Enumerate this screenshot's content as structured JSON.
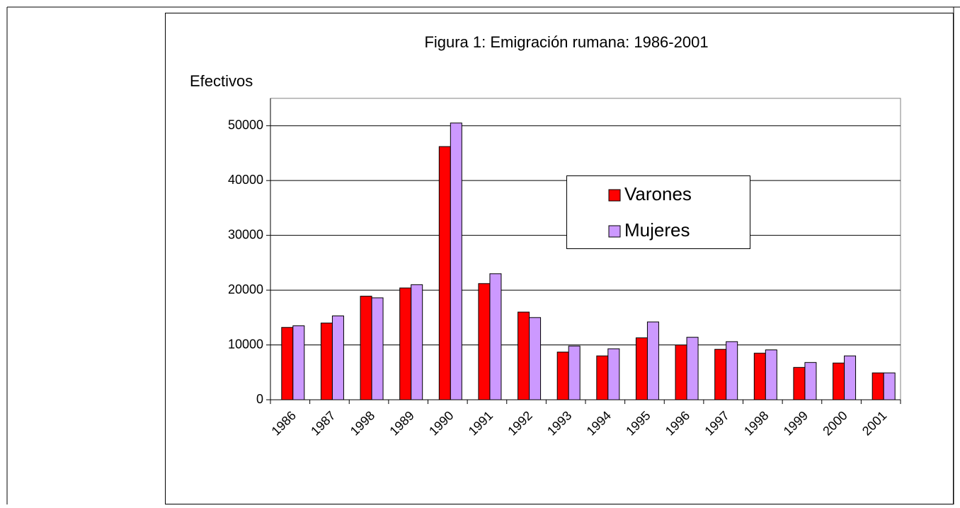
{
  "chart_data": {
    "type": "bar",
    "title": "Figura 1: Emigración rumana: 1986-2001",
    "y_label": "Efectivos",
    "categories": [
      "1986",
      "1987",
      "1998",
      "1989",
      "1990",
      "1991",
      "1992",
      "1993",
      "1994",
      "1995",
      "1996",
      "1997",
      "1998",
      "1999",
      "2000",
      "2001"
    ],
    "series": [
      {
        "name": "Varones",
        "color": "#ff0000",
        "values": [
          13200,
          14000,
          18900,
          20400,
          46200,
          21200,
          16000,
          8700,
          8000,
          11300,
          10000,
          9200,
          8500,
          5900,
          6700,
          4900
        ]
      },
      {
        "name": "Mujeres",
        "color": "#cc99ff",
        "values": [
          13500,
          15300,
          18600,
          21000,
          50500,
          23000,
          15000,
          9800,
          9300,
          14200,
          11400,
          10600,
          9100,
          6800,
          8000,
          4900
        ]
      }
    ],
    "ylim": [
      0,
      55000
    ],
    "yticks": [
      0,
      10000,
      20000,
      30000,
      40000,
      50000
    ],
    "grid": true
  }
}
